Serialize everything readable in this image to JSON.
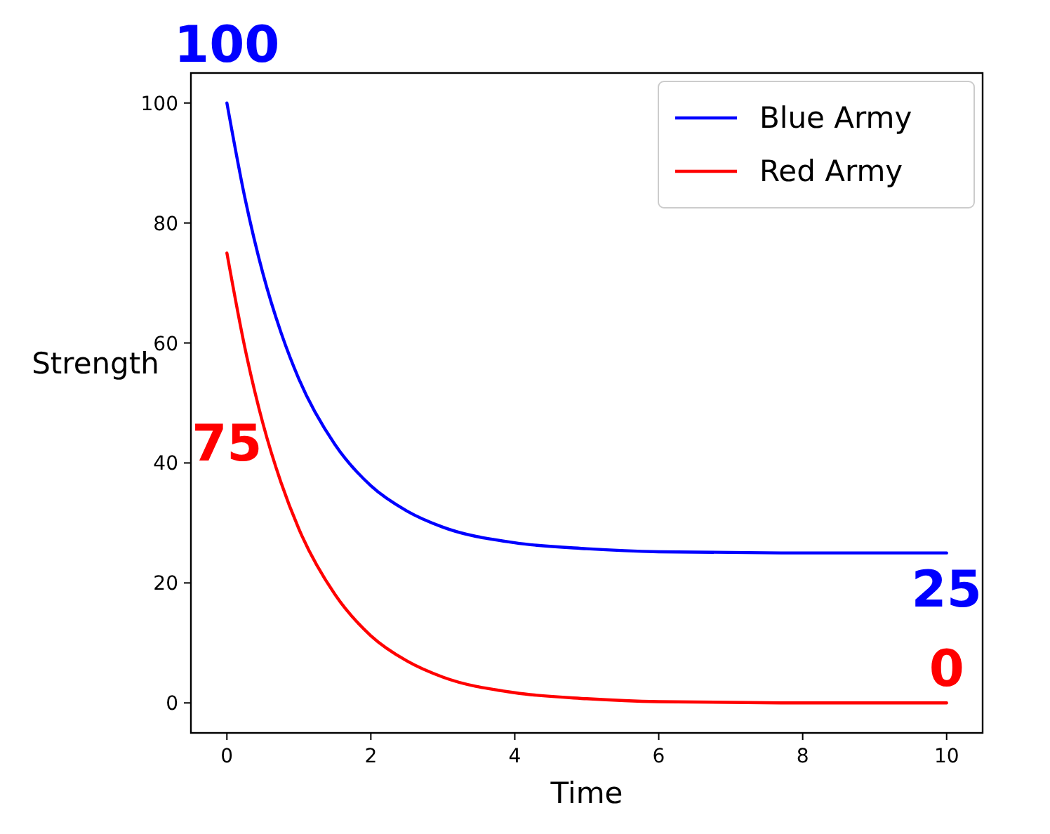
{
  "chart_data": {
    "type": "line",
    "xlabel": "Time",
    "ylabel": "Strength",
    "x": [
      0,
      0.25,
      0.5,
      0.75,
      1,
      1.5,
      2,
      2.5,
      3,
      4,
      5,
      6,
      8,
      10
    ],
    "series": [
      {
        "name": "Blue Army",
        "color": "#0000ff",
        "values": [
          100,
          84.2,
          71.6,
          61.8,
          54,
          43.1,
          36.2,
          32,
          29.3,
          26.7,
          25.7,
          25.2,
          25,
          25
        ]
      },
      {
        "name": "Red Army",
        "color": "#ff0000",
        "values": [
          75,
          59.2,
          46.6,
          36.8,
          29,
          18.1,
          11.2,
          7,
          4.3,
          1.7,
          0.7,
          0.2,
          0,
          0
        ]
      }
    ],
    "xlim": [
      -0.5,
      10.5
    ],
    "ylim": [
      -5,
      105
    ],
    "xticks": [
      0,
      2,
      4,
      6,
      8,
      10
    ],
    "yticks": [
      0,
      20,
      40,
      60,
      80,
      100
    ],
    "grid": false,
    "legend": "top right",
    "marker": "none",
    "line_style": "solid",
    "annotations": [
      "100",
      "75",
      "25",
      "0"
    ]
  }
}
